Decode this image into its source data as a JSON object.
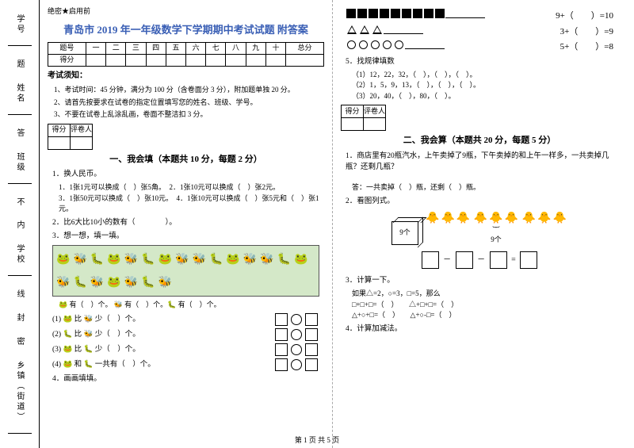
{
  "secret": "绝密★启用前",
  "title": "青岛市 2019 年一年级数学下学期期中考试试题 附答案",
  "score_header": [
    "题号",
    "一",
    "二",
    "三",
    "四",
    "五",
    "六",
    "七",
    "八",
    "九",
    "十",
    "总分"
  ],
  "score_row_label": "得分",
  "notice_h": "考试须知：",
  "notices": [
    "1、考试时间：45 分钟，满分为 100 分（含卷面分 3 分），附加题单独 20 分。",
    "2、请首先按要求在试卷的指定位置填写您的姓名、班级、学号。",
    "3、不要在试卷上乱涂乱画，卷面不整洁扣 3 分。"
  ],
  "mini_score": [
    "得分",
    "评卷人"
  ],
  "sec1_h": "一、我会填（本题共 10 分，每题 2 分）",
  "q1": "1．换人民币。",
  "q1_lines": [
    "1．1张1元可以换成（　）张5角。　2．1张10元可以换成（　）张2元。",
    "3．1张50元可以换成（　）张10元。　4．1张10元可以换成（　）张5元和（　）张1元。"
  ],
  "q2": "2．比6大比10小的数有（　　　　）。",
  "q3": "3．想一想，填一填。",
  "row_below": "🐸 有（　）个。 🐝 有（　）个。🐛 有（　）个。",
  "cmp": [
    "(1) 🐸 比 🐝 少（　）个。",
    "(2) 🐛 比 🐝 少（　）个。",
    "(3) 🐸 比 🐛 少（　）个。",
    "(4) 🐸 和 🐛 一共有（　）个。"
  ],
  "q4": "4．画画填填。",
  "right_eq": [
    {
      "lhs_type": "blacksq",
      "count": 9,
      "eq": "9+（　　）=10"
    },
    {
      "lhs_type": "tri",
      "count": 3,
      "eq": "3+（　　）=9"
    },
    {
      "lhs_type": "circ",
      "count": 5,
      "eq": "5+（　　）=8"
    }
  ],
  "q5": "5．找规律填数",
  "q5_lines": [
    "（1）12，22，32，（　），（　），（　）。",
    "（2）1，5，9，13，（　），（　），（　）。",
    "（3）20，40，（　），80，（　）。"
  ],
  "sec2_h": "二、我会算（本题共 20 分，每题 5 分）",
  "r_q1": "1．商店里有20瓶汽水，上午卖掉了9瓶，下午卖掉的和上午一样多，一共卖掉几瓶？还剩几瓶？",
  "r_q1_ans": "答：一共卖掉（　）瓶，还剩（　）瓶。",
  "r_q2": "2．看图列式。",
  "box_label": "9个",
  "brace_label": "9个",
  "r_q3": "3．计算一下。",
  "r_q3_lines": [
    "如果△=2，○=3，□=5，那么",
    "□+□+□=（　）　　△+□+□=（　）",
    "△+○+□=（　）　　△+○-□=（　）"
  ],
  "r_q4": "4．计算加减法。",
  "sidebar": [
    "学号",
    "姓名",
    "班级",
    "学校",
    "乡镇（街道）"
  ],
  "side_notes": [
    "题",
    "答",
    "不",
    "内",
    "线",
    "封",
    "密"
  ],
  "footer": "第 1 页 共 5 页"
}
